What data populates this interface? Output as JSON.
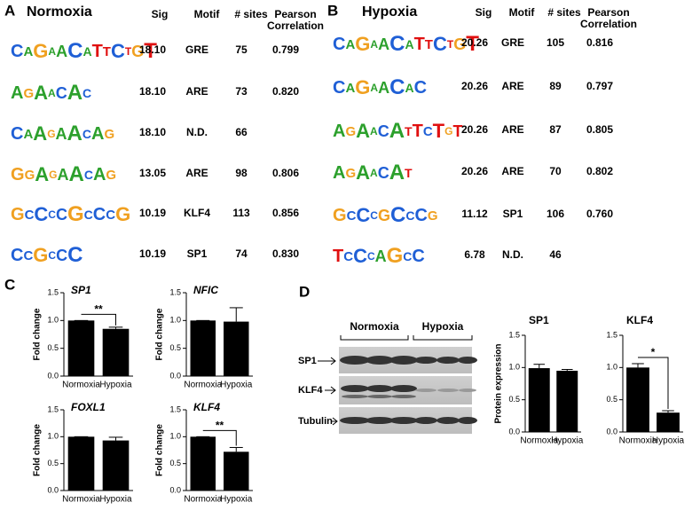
{
  "panel_labels": [
    "A",
    "B",
    "C",
    "D"
  ],
  "tables": [
    {
      "title": "Normoxia",
      "headers": [
        "Sig",
        "Motif",
        "# sites",
        "Pearson Correlation"
      ],
      "rows": [
        {
          "logo": "CAGAACATTCTGT",
          "cells": [
            "18.10",
            "GRE",
            "75",
            "0.799"
          ]
        },
        {
          "logo": "AGAACAC",
          "cells": [
            "18.10",
            "ARE",
            "73",
            "0.820"
          ]
        },
        {
          "logo": "CAAGAACAG",
          "cells": [
            "18.10",
            "N.D.",
            "66"
          ]
        },
        {
          "logo": "GGAGAACAG",
          "cells": [
            "13.05",
            "ARE",
            "98",
            "0.806"
          ]
        },
        {
          "logo": "GCCCCGCCCG",
          "cells": [
            "10.19",
            "KLF4",
            "113",
            "0.856"
          ]
        },
        {
          "logo": "CCGCCC",
          "cells": [
            "10.19",
            "SP1",
            "74",
            "0.830"
          ]
        }
      ]
    },
    {
      "title": "Hypoxia",
      "headers": [
        "Sig",
        "Motif",
        "# sites",
        "Pearson Correlation"
      ],
      "rows": [
        {
          "logo": "CAGAACATTCTGT",
          "cells": [
            "20.26",
            "GRE",
            "105",
            "0.816"
          ]
        },
        {
          "logo": "CAGAACAC",
          "cells": [
            "20.26",
            "ARE",
            "89",
            "0.797"
          ]
        },
        {
          "logo": "AGAACATTCTGT",
          "cells": [
            "20.26",
            "ARE",
            "87",
            "0.805"
          ]
        },
        {
          "logo": "AGAACAT",
          "cells": [
            "20.26",
            "ARE",
            "70",
            "0.802"
          ]
        },
        {
          "logo": "GCCCGCCCG",
          "cells": [
            "11.12",
            "SP1",
            "106",
            "0.760"
          ]
        },
        {
          "logo": "TCCCAGCC",
          "cells": [
            "6.78",
            "N.D.",
            "46"
          ]
        }
      ]
    }
  ],
  "blot": {
    "groups": [
      "Normoxia",
      "Hypoxia"
    ],
    "rows": [
      "SP1",
      "KLF4",
      "Tubulin"
    ]
  },
  "chart_data": [
    {
      "type": "bar",
      "title": "SP1",
      "ylabel": "Fold change",
      "categories": [
        "Normoxia",
        "Hypoxia"
      ],
      "values": [
        1.0,
        0.85
      ],
      "errors": [
        0,
        0.03
      ],
      "color": "#000000",
      "ylim": [
        0,
        1.5
      ],
      "yticks": [
        {
          "value": 0,
          "label": "0.0"
        },
        0.5,
        {
          "value": 1,
          "label": "1.0"
        },
        1.5
      ],
      "significance": "**"
    },
    {
      "type": "bar",
      "title": "NFIC",
      "ylabel": "Fold change",
      "categories": [
        "Normoxia",
        "Hypoxia"
      ],
      "values": [
        1.0,
        0.98
      ],
      "errors": [
        0,
        0.25
      ],
      "color": "#000000",
      "ylim": [
        0,
        1.5
      ],
      "yticks": [
        {
          "value": 0,
          "label": "0.0"
        },
        0.5,
        {
          "value": 1,
          "label": "1.0"
        },
        1.5
      ]
    },
    {
      "type": "bar",
      "title": "FOXL1",
      "ylabel": "Fold change",
      "categories": [
        "Normoxia",
        "Hypoxia"
      ],
      "values": [
        1.0,
        0.93
      ],
      "errors": [
        0,
        0.06
      ],
      "color": "#000000",
      "ylim": [
        0,
        1.5
      ],
      "yticks": [
        {
          "value": 0,
          "label": "0.0"
        },
        0.5,
        {
          "value": 1,
          "label": "1.0"
        },
        1.5
      ]
    },
    {
      "type": "bar",
      "title": "KLF4",
      "ylabel": "Fold change",
      "categories": [
        "Normoxia",
        "Hypoxia"
      ],
      "values": [
        1.0,
        0.72
      ],
      "errors": [
        0,
        0.08
      ],
      "color": "#000000",
      "ylim": [
        0,
        1.5
      ],
      "yticks": [
        {
          "value": 0,
          "label": "0.0"
        },
        0.5,
        {
          "value": 1,
          "label": "1.0"
        },
        1.5
      ],
      "significance": "**"
    },
    {
      "type": "bar",
      "title": "SP1",
      "ylabel": "Protein expression",
      "categories": [
        "Normoxia",
        "Hypoxia"
      ],
      "values": [
        0.99,
        0.95
      ],
      "errors": [
        0.06,
        0.02
      ],
      "color": "#000000",
      "ylim": [
        0,
        1.5
      ],
      "yticks": [
        {
          "value": 0,
          "label": "0.0"
        },
        0.5,
        {
          "value": 1,
          "label": "1.0"
        },
        1.5
      ]
    },
    {
      "type": "bar",
      "title": "KLF4",
      "categories": [
        "Normoxia",
        "Hypoxia"
      ],
      "values": [
        1.0,
        0.3
      ],
      "errors": [
        0.06,
        0.03
      ],
      "color": "#000000",
      "ylim": [
        0,
        1.5
      ],
      "yticks": [
        {
          "value": 0,
          "label": "0.0"
        },
        0.5,
        {
          "value": 1,
          "label": "1.0"
        },
        1.5
      ],
      "significance": "*"
    }
  ]
}
